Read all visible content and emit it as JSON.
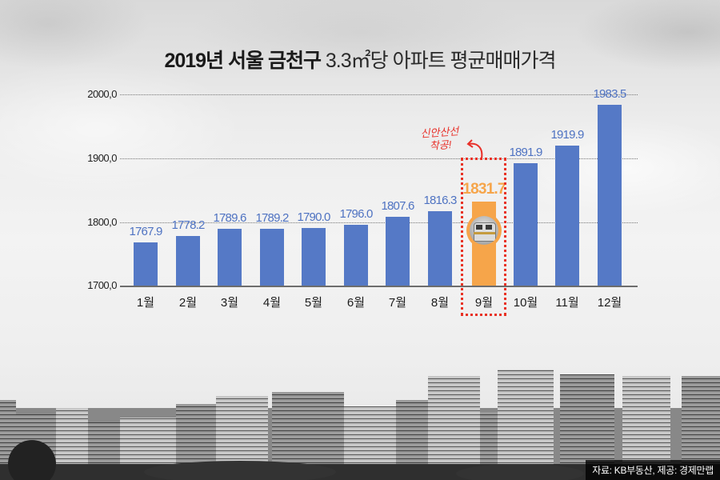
{
  "title": {
    "bold": "2019년 서울 금천구",
    "light": "3.3㎡당 아파트 평균매매가격"
  },
  "annotation": {
    "line1": "신안산선",
    "line2": "착공!",
    "color": "#e8312a"
  },
  "source": "자료: KB부동산, 제공: 경제만랩",
  "colors": {
    "bar": "#5579c6",
    "highlight_bar": "#f6a54a",
    "highlight_box": "#e83224"
  },
  "chart_data": {
    "type": "bar",
    "title": "2019년 서울 금천구 3.3㎡당 아파트 평균매매가격",
    "xlabel": "",
    "ylabel": "",
    "ylim": [
      1700,
      2000
    ],
    "yticks": [
      "1700,0",
      "1800,0",
      "1900,0",
      "2000,0"
    ],
    "grid": true,
    "categories": [
      "1월",
      "2월",
      "3월",
      "4월",
      "5월",
      "6월",
      "7월",
      "8월",
      "9월",
      "10월",
      "11월",
      "12월"
    ],
    "values": [
      1767.9,
      1778.2,
      1789.6,
      1789.2,
      1790.0,
      1796.0,
      1807.6,
      1816.3,
      1831.7,
      1891.9,
      1919.9,
      1983.5
    ],
    "value_labels": [
      "1767.9",
      "1778.2",
      "1789.6",
      "1789.2",
      "1790.0",
      "1796.0",
      "1807.6",
      "1816.3",
      "1831.7",
      "1891.9",
      "1919.9",
      "1983.5"
    ],
    "highlight_index": 8,
    "annotations": [
      "신안산선 착공!"
    ],
    "source": "자료: KB부동산, 제공: 경제만랩"
  }
}
